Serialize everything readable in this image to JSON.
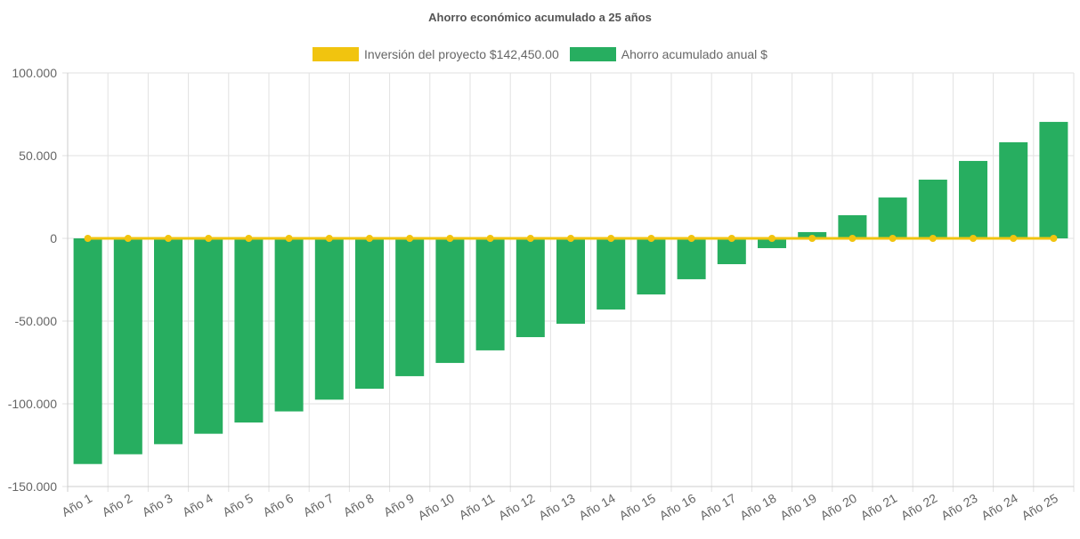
{
  "chart_data": {
    "type": "bar",
    "title": "Ahorro económico acumulado a 25 años",
    "categories": [
      "Año 1",
      "Año 2",
      "Año 3",
      "Año 4",
      "Año 5",
      "Año 6",
      "Año 7",
      "Año 8",
      "Año 9",
      "Año 10",
      "Año 11",
      "Año 12",
      "Año 13",
      "Año 14",
      "Año 15",
      "Año 16",
      "Año 17",
      "Año 18",
      "Año 19",
      "Año 20",
      "Año 21",
      "Año 22",
      "Año 23",
      "Año 24",
      "Año 25"
    ],
    "series": [
      {
        "name": "Inversión del proyecto $142,450.00",
        "type": "line",
        "color": "#f1c40f",
        "values": [
          0,
          0,
          0,
          0,
          0,
          0,
          0,
          0,
          0,
          0,
          0,
          0,
          0,
          0,
          0,
          0,
          0,
          0,
          0,
          0,
          0,
          0,
          0,
          0,
          0
        ]
      },
      {
        "name": "Ahorro acumulado anual $",
        "type": "bar",
        "color": "#27ae60",
        "values": [
          -136400,
          -130500,
          -124400,
          -118100,
          -111300,
          -104600,
          -97500,
          -90900,
          -83300,
          -75300,
          -67700,
          -59700,
          -51600,
          -43000,
          -33900,
          -24700,
          -15600,
          -5900,
          3800,
          14000,
          24700,
          35500,
          46800,
          58100,
          70400
        ]
      }
    ],
    "ylim": [
      -150000,
      100000
    ],
    "yticks": [
      "100.000",
      "50.000",
      "0",
      "-50.000",
      "-100.000",
      "-150.000"
    ],
    "ytick_values": [
      100000,
      50000,
      0,
      -50000,
      -100000,
      -150000
    ],
    "grid": true,
    "legend": "top"
  }
}
